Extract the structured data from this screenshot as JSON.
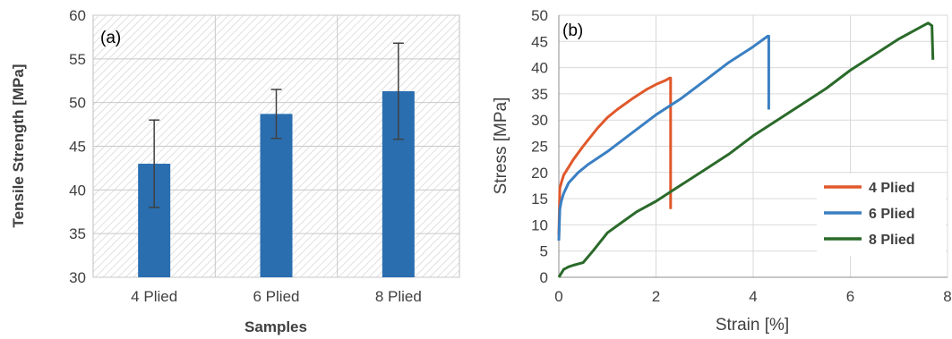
{
  "chart_data": [
    {
      "type": "bar",
      "panel_label": "(a)",
      "categories": [
        "4 Plied",
        "6 Plied",
        "8 Plied"
      ],
      "values": [
        43,
        48.7,
        51.3
      ],
      "error": [
        5,
        2.8,
        5.5
      ],
      "xlabel": "Samples",
      "ylabel": "Tensile Strength [MPa]",
      "ylim": [
        30,
        60
      ],
      "yticks": [
        "30",
        "35",
        "40",
        "45",
        "50",
        "55",
        "60"
      ],
      "grid": true,
      "color": "#2a6eb0"
    },
    {
      "type": "line",
      "panel_label": "(b)",
      "xlabel": "Strain [%]",
      "ylabel": "Stress [MPa]",
      "xlim": [
        0,
        8
      ],
      "ylim": [
        0,
        50
      ],
      "xticks": [
        "0",
        "2",
        "4",
        "6",
        "8"
      ],
      "yticks": [
        "0",
        "5",
        "10",
        "15",
        "20",
        "25",
        "30",
        "35",
        "40",
        "45",
        "50"
      ],
      "legend_position": "bottom-right",
      "series": [
        {
          "name": "4 Plied",
          "color": "#e0582b",
          "x": [
            0,
            0.02,
            0.05,
            0.1,
            0.2,
            0.3,
            0.5,
            0.8,
            1.0,
            1.2,
            1.5,
            1.8,
            2.0,
            2.2,
            2.28,
            2.3,
            2.3
          ],
          "y": [
            8,
            17,
            18,
            19.5,
            21,
            22.5,
            25,
            28.5,
            30.5,
            32,
            34,
            35.8,
            36.8,
            37.6,
            38,
            38,
            13
          ]
        },
        {
          "name": "6 Plied",
          "color": "#3a7fc2",
          "x": [
            0,
            0.02,
            0.05,
            0.1,
            0.2,
            0.4,
            0.6,
            1.0,
            1.5,
            2.0,
            2.5,
            3.0,
            3.5,
            4.0,
            4.3,
            4.32,
            4.32
          ],
          "y": [
            7,
            13,
            14.5,
            16,
            18,
            20,
            21.5,
            24,
            27.5,
            31,
            34,
            37.5,
            41,
            44,
            46,
            46,
            32
          ]
        },
        {
          "name": "8 Plied",
          "color": "#2a6a2a",
          "x": [
            0,
            0.1,
            0.2,
            0.3,
            0.5,
            0.7,
            1.0,
            1.3,
            1.6,
            2.0,
            2.5,
            3.0,
            3.5,
            4.0,
            4.5,
            5.0,
            5.5,
            6.0,
            6.5,
            7.0,
            7.5,
            7.6,
            7.68,
            7.7
          ],
          "y": [
            0,
            1.5,
            2,
            2.3,
            2.8,
            5,
            8.5,
            10.5,
            12.5,
            14.5,
            17.5,
            20.5,
            23.5,
            27,
            30,
            33,
            36,
            39.5,
            42.5,
            45.5,
            48,
            48.5,
            48,
            41.5
          ]
        }
      ]
    }
  ]
}
